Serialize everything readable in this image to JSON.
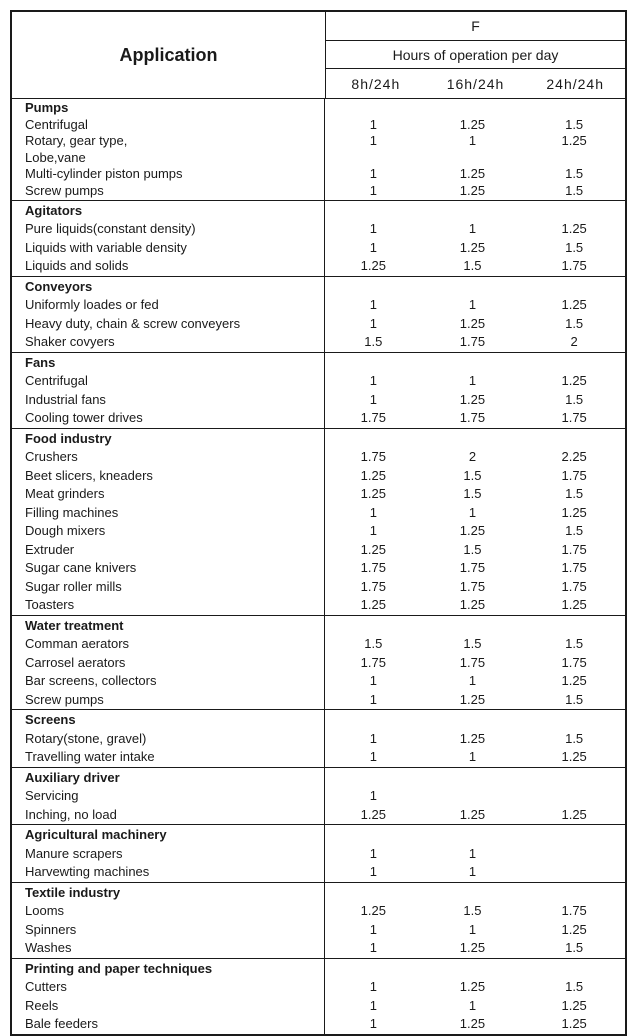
{
  "header": {
    "application": "Application",
    "factor": "F",
    "hours": "Hours of operation per day",
    "columns": [
      "8h/24h",
      "16h/24h",
      "24h/24h"
    ]
  },
  "groups": [
    {
      "title": "Pumps",
      "rows": [
        {
          "label": "Centrifugal",
          "values": [
            "1",
            "1.25",
            "1.5"
          ]
        },
        {
          "label": "Rotary, gear type,",
          "values": [
            "1",
            "1",
            "1.25"
          ]
        },
        {
          "label": "Lobe,vane",
          "values": [
            "",
            "",
            ""
          ]
        },
        {
          "label": "Multi-cylinder piston pumps",
          "values": [
            "1",
            "1.25",
            "1.5"
          ]
        },
        {
          "label": "Screw pumps",
          "values": [
            "1",
            "1.25",
            "1.5"
          ]
        }
      ]
    },
    {
      "title": "Agitators",
      "rows": [
        {
          "label": "Pure liquids(constant density)",
          "values": [
            "1",
            "1",
            "1.25"
          ]
        },
        {
          "label": "Liquids with variable density",
          "values": [
            "1",
            "1.25",
            "1.5"
          ]
        },
        {
          "label": "Liquids and solids",
          "values": [
            "1.25",
            "1.5",
            "1.75"
          ]
        }
      ]
    },
    {
      "title": "Conveyors",
      "rows": [
        {
          "label": "Uniformly loades or fed",
          "values": [
            "1",
            "1",
            "1.25"
          ]
        },
        {
          "label": "Heavy duty, chain & screw conveyers",
          "values": [
            "1",
            "1.25",
            "1.5"
          ]
        },
        {
          "label": "Shaker covyers",
          "values": [
            "1.5",
            "1.75",
            "2"
          ]
        }
      ]
    },
    {
      "title": "Fans",
      "rows": [
        {
          "label": "Centrifugal",
          "values": [
            "1",
            "1",
            "1.25"
          ]
        },
        {
          "label": "Industrial fans",
          "values": [
            "1",
            "1.25",
            "1.5"
          ]
        },
        {
          "label": "Cooling tower drives",
          "values": [
            "1.75",
            "1.75",
            "1.75"
          ]
        }
      ]
    },
    {
      "title": "Food industry",
      "rows": [
        {
          "label": "Crushers",
          "values": [
            "1.75",
            "2",
            "2.25"
          ]
        },
        {
          "label": "Beet slicers, kneaders",
          "values": [
            "1.25",
            "1.5",
            "1.75"
          ]
        },
        {
          "label": "Meat grinders",
          "values": [
            "1.25",
            "1.5",
            "1.5"
          ]
        },
        {
          "label": "Filling machines",
          "values": [
            "1",
            "1",
            "1.25"
          ]
        },
        {
          "label": "Dough mixers",
          "values": [
            "1",
            "1.25",
            "1.5"
          ]
        },
        {
          "label": "Extruder",
          "values": [
            "1.25",
            "1.5",
            "1.75"
          ]
        },
        {
          "label": "Sugar cane knivers",
          "values": [
            "1.75",
            "1.75",
            "1.75"
          ]
        },
        {
          "label": "Sugar roller mills",
          "values": [
            "1.75",
            "1.75",
            "1.75"
          ]
        },
        {
          "label": "Toasters",
          "values": [
            "1.25",
            "1.25",
            "1.25"
          ]
        }
      ]
    },
    {
      "title": "Water treatment",
      "rows": [
        {
          "label": "Comman aerators",
          "values": [
            "1.5",
            "1.5",
            "1.5"
          ]
        },
        {
          "label": "Carrosel aerators",
          "values": [
            "1.75",
            "1.75",
            "1.75"
          ]
        },
        {
          "label": "Bar screens, collectors",
          "values": [
            "1",
            "1",
            "1.25"
          ]
        },
        {
          "label": "Screw pumps",
          "values": [
            "1",
            "1.25",
            "1.5"
          ]
        }
      ]
    },
    {
      "title": "Screens",
      "rows": [
        {
          "label": "Rotary(stone, gravel)",
          "values": [
            "1",
            "1.25",
            "1.5"
          ]
        },
        {
          "label": "Travelling water intake",
          "values": [
            "1",
            "1",
            "1.25"
          ]
        }
      ]
    },
    {
      "title": "Auxiliary driver",
      "rows": [
        {
          "label": "Servicing",
          "values": [
            "1",
            "",
            ""
          ]
        },
        {
          "label": "Inching, no load",
          "values": [
            "1.25",
            "1.25",
            "1.25"
          ]
        }
      ]
    },
    {
      "title": "Agricultural machinery",
      "rows": [
        {
          "label": "Manure scrapers",
          "values": [
            "1",
            "1",
            ""
          ]
        },
        {
          "label": "Harvewting machines",
          "values": [
            "1",
            "1",
            ""
          ]
        }
      ]
    },
    {
      "title": "Textile industry",
      "rows": [
        {
          "label": "Looms",
          "values": [
            "1.25",
            "1.5",
            "1.75"
          ]
        },
        {
          "label": "Spinners",
          "values": [
            "1",
            "1",
            "1.25"
          ]
        },
        {
          "label": "Washes",
          "values": [
            "1",
            "1.25",
            "1.5"
          ]
        }
      ]
    },
    {
      "title": "Printing and paper techniques",
      "rows": [
        {
          "label": "Cutters",
          "values": [
            "1",
            "1.25",
            "1.5"
          ]
        },
        {
          "label": "Reels",
          "values": [
            "1",
            "1",
            "1.25"
          ]
        },
        {
          "label": "Bale feeders",
          "values": [
            "1",
            "1.25",
            "1.25"
          ]
        }
      ]
    }
  ]
}
